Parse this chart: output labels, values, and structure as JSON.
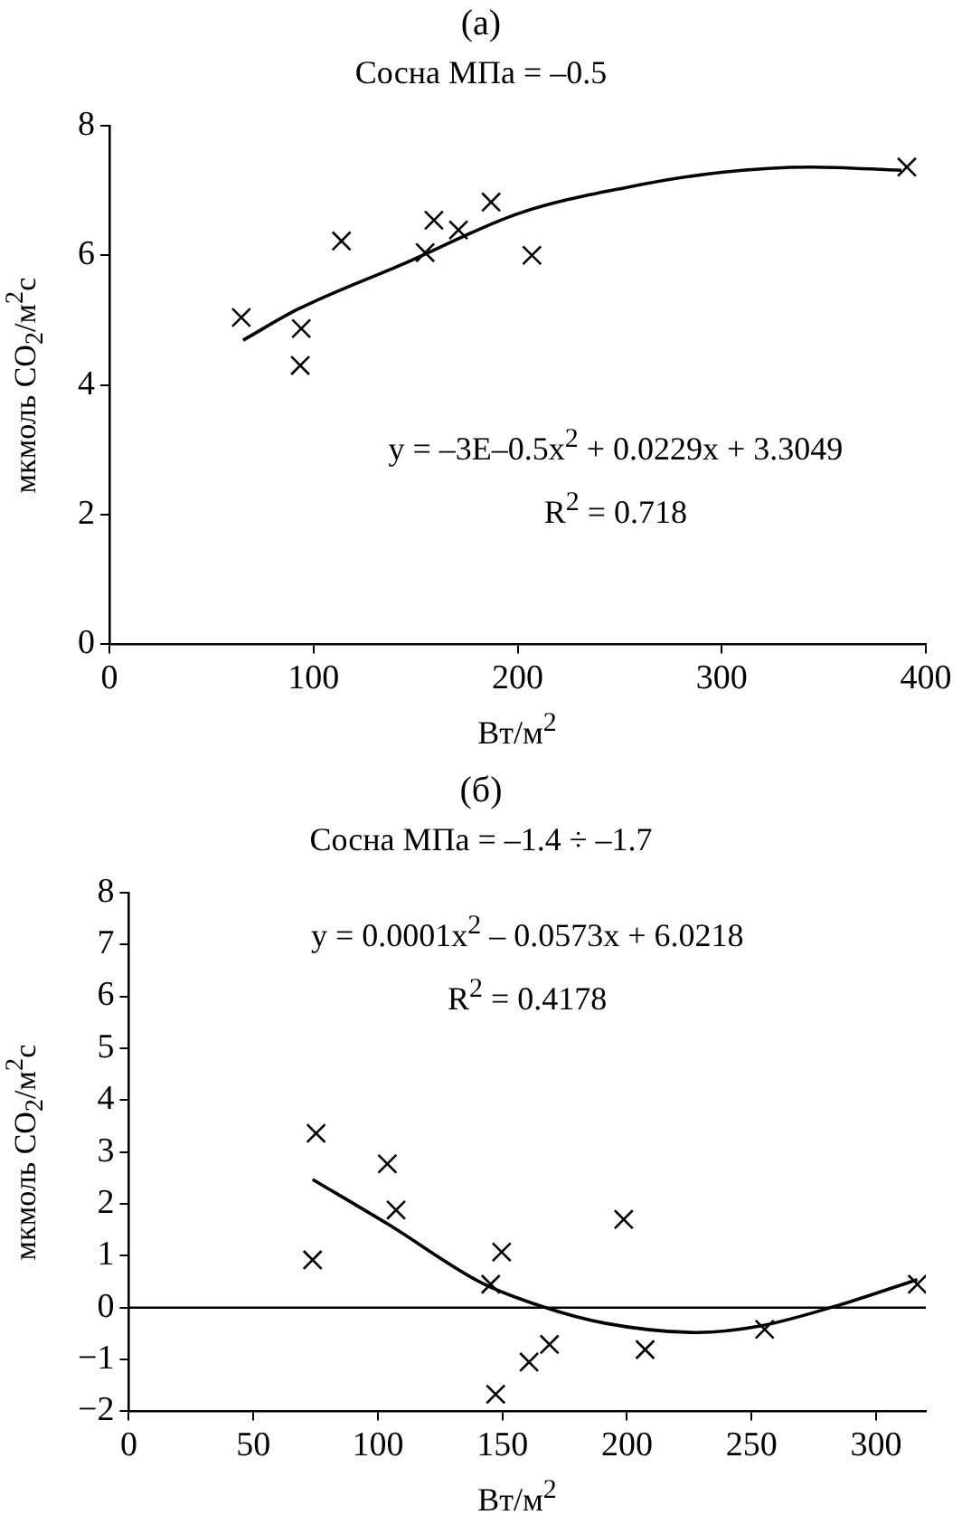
{
  "chart_data": [
    {
      "type": "scatter",
      "title": "(a)",
      "subtitle": "Сосна МПа = –0.5",
      "xlabel": "Вт/м$^{2}$",
      "ylabel": "мкмоль CO$_{2}$/м$^{2}$с",
      "annotations": [
        "y = –3E–0.5x$^{2}$ + 0.0229x + 3.3049",
        "R$^{2}$ = 0.718"
      ],
      "xlim": [
        0,
        400
      ],
      "xticks": [
        0,
        100,
        200,
        300,
        400
      ],
      "ylim": [
        0,
        8
      ],
      "yticks": [
        0,
        2,
        4,
        6,
        8
      ],
      "grid": false,
      "legend": false,
      "series": [
        {
          "color": "#000000",
          "marker": "cross",
          "x": [
            64.6,
            94,
            93.5,
            113.7,
            154.7,
            159,
            171,
            187,
            207,
            390.7
          ],
          "values": [
            5.04,
            4.87,
            4.3,
            6.22,
            6.04,
            6.54,
            6.39,
            6.82,
            6.0,
            7.36
          ]
        },
        {
          "type": "line",
          "color": "#000000",
          "marker": "none",
          "line_style": "solid",
          "x": [
            65.5,
            92.5,
            145,
            201,
            254,
            300,
            344,
            388
          ],
          "values": [
            4.69,
            5.17,
            5.88,
            6.65,
            7.05,
            7.28,
            7.36,
            7.31
          ]
        }
      ]
    },
    {
      "type": "scatter",
      "title": "(б)",
      "subtitle": "Сосна МПа = –1.4 ÷ –1.7",
      "xlabel": "Вт/м$^{2}$",
      "ylabel": "мкмоль CO$_{2}$/м$^{2}$с",
      "annotations": [
        "y = 0.0001x$^{2}$ – 0.0573x + 6.0218",
        "R$^{2}$ = 0.4178"
      ],
      "xlim": [
        0,
        320
      ],
      "xticks": [
        0,
        50,
        100,
        150,
        200,
        250,
        300
      ],
      "ylim": [
        -2,
        8
      ],
      "yticks": [
        -2,
        -1,
        0,
        1,
        2,
        3,
        4,
        5,
        6,
        7,
        8
      ],
      "grid": false,
      "legend": false,
      "ref_lines": [
        {
          "axis": "y",
          "value": 0,
          "color": "#000000"
        }
      ],
      "series": [
        {
          "color": "#000000",
          "marker": "cross",
          "x": [
            73.8,
            75.2,
            103.8,
            107.3,
            145.3,
            149.7,
            147.3,
            160.7,
            168.9,
            198.7,
            207.3,
            255.3,
            316.6
          ],
          "values": [
            0.92,
            3.36,
            2.77,
            1.88,
            0.45,
            1.07,
            -1.67,
            -1.05,
            -0.71,
            1.7,
            -0.81,
            -0.42,
            0.45
          ]
        },
        {
          "type": "line",
          "color": "#000000",
          "marker": "none",
          "line_style": "solid",
          "x": [
            73.8,
            104,
            141.5,
            166,
            191,
            228,
            253,
            286,
            316.6
          ],
          "values": [
            2.47,
            1.61,
            0.48,
            0.02,
            -0.3,
            -0.48,
            -0.36,
            0.06,
            0.54
          ]
        }
      ]
    }
  ]
}
